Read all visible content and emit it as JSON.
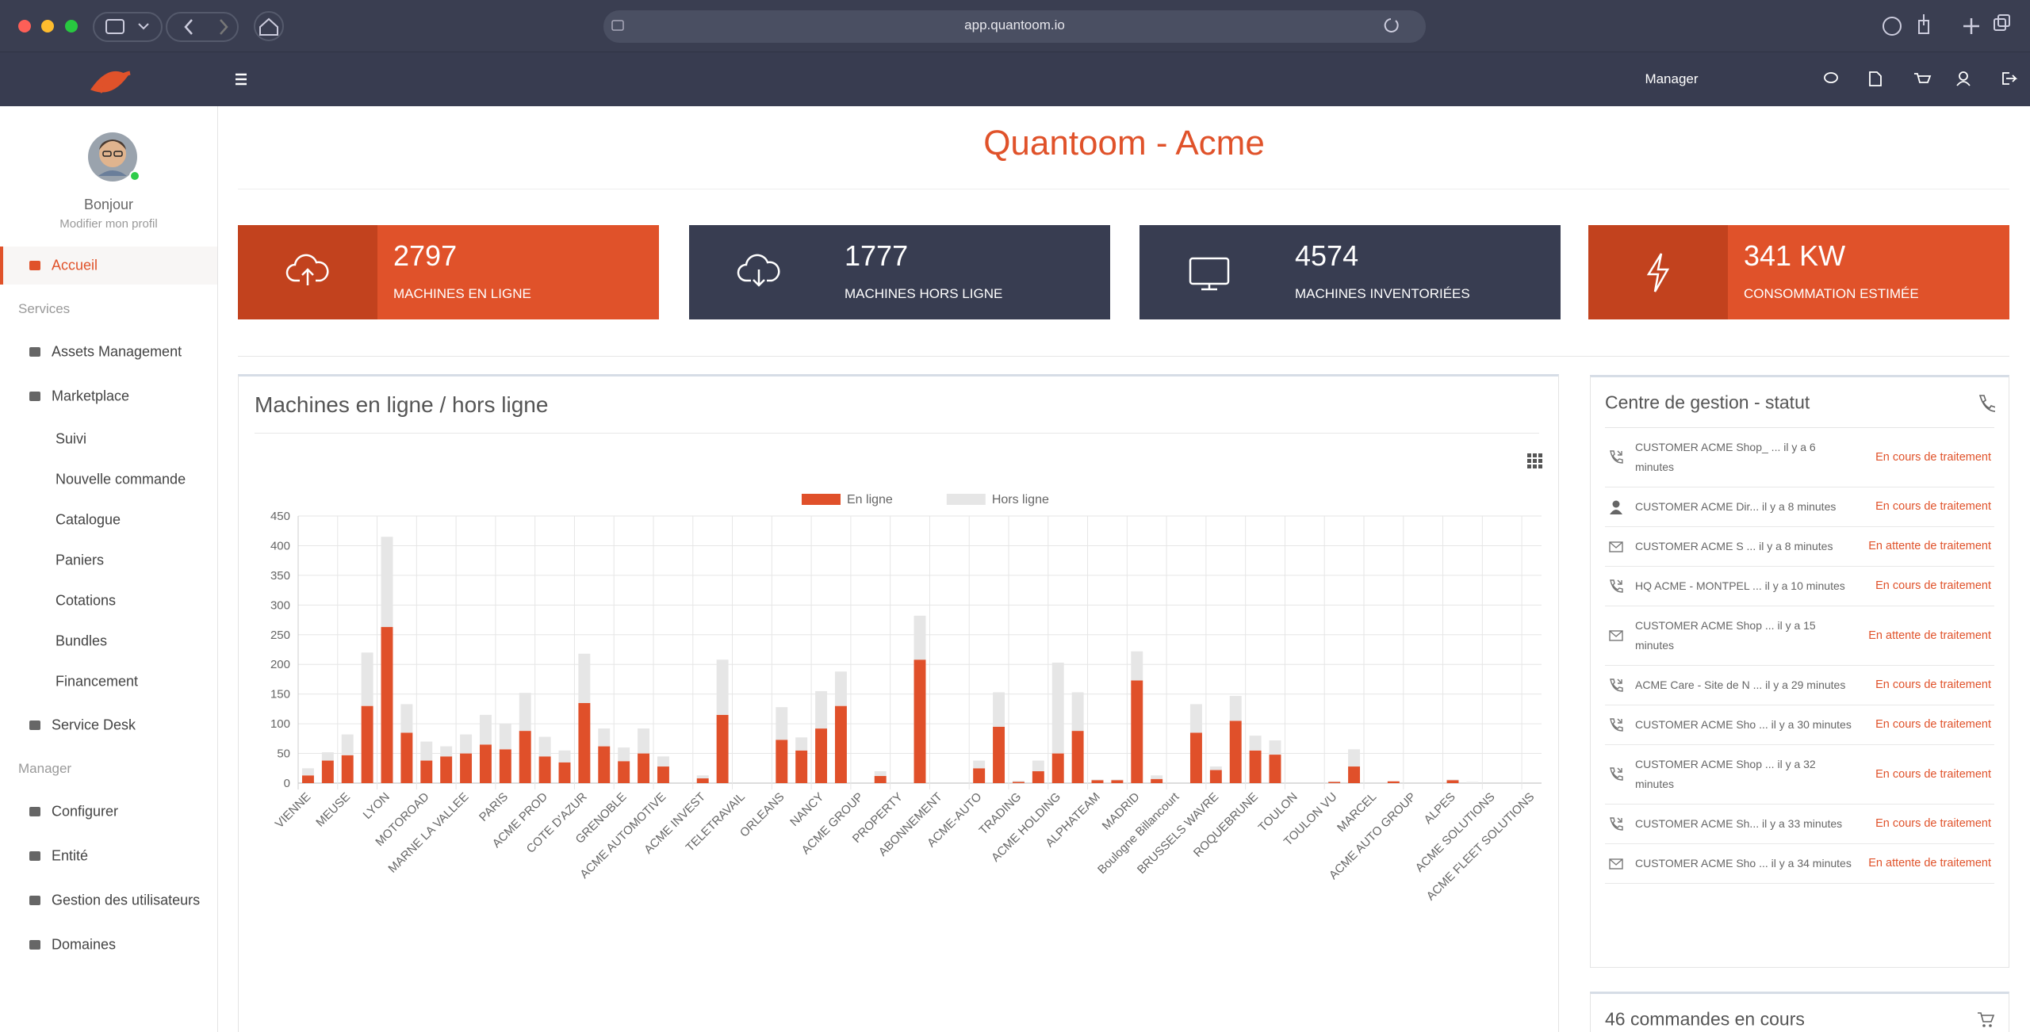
{
  "browser": {
    "url": "app.quantoom.io"
  },
  "header": {
    "role": "Manager"
  },
  "sidebar": {
    "greeting": "Bonjour",
    "profile_link": "Modifier mon profil",
    "home": "Accueil",
    "sections": [
      {
        "title": "Services",
        "items": [
          {
            "label": "Assets Management"
          },
          {
            "label": "Marketplace",
            "children": [
              "Suivi",
              "Nouvelle commande",
              "Catalogue",
              "Paniers",
              "Cotations",
              "Bundles",
              "Financement"
            ]
          },
          {
            "label": "Service Desk"
          }
        ]
      },
      {
        "title": "Manager",
        "items": [
          {
            "label": "Configurer"
          },
          {
            "label": "Entité"
          },
          {
            "label": "Gestion des utilisateurs"
          },
          {
            "label": "Domaines"
          }
        ]
      }
    ]
  },
  "page_title": "Quantoom - Acme",
  "stats": [
    {
      "value": "2797",
      "label": "MACHINES EN LIGNE",
      "color": "#e0522a",
      "icon_color": "#c2421e"
    },
    {
      "value": "1777",
      "label": "MACHINES HORS LIGNE",
      "color": "#383d51",
      "icon_color": "#383d51"
    },
    {
      "value": "4574",
      "label": "MACHINES INVENTORIÉES",
      "color": "#383d51",
      "icon_color": "#383d51"
    },
    {
      "value": "341 KW",
      "label": "CONSOMMATION ESTIMÉE",
      "color": "#e0522a",
      "icon_color": "#c2421e"
    }
  ],
  "chart_panel_title": "Machines en ligne / hors ligne",
  "chart_data": {
    "type": "stacked_bar",
    "categories": [
      "VIENNE",
      null,
      "MEUSE",
      null,
      "LYON",
      null,
      "MOTOROAD",
      null,
      "MARNE LA VALLEE",
      null,
      "PARIS",
      null,
      "ACME PROD",
      null,
      "COTE D'AZUR",
      null,
      "GRENOBLE",
      null,
      "ACME AUTOMOTIVE",
      null,
      "ACME INVEST",
      null,
      "TELETRAVAIL",
      null,
      "ORLEANS",
      null,
      "NANCY",
      null,
      "ACME GROUP",
      null,
      "PROPERTY",
      null,
      "ABONNEMENT",
      null,
      "ACME-AUTO",
      null,
      "TRADING",
      null,
      "ACME HOLDING",
      null,
      "ALPHATEAM",
      null,
      "MADRID",
      null,
      "Boulogne Billancourt",
      null,
      "BRUSSELS WAVRE",
      null,
      "ROQUEBRUNE",
      null,
      "TOULON",
      null,
      "TOULON VU",
      null,
      "MARCEL",
      null,
      "ACME AUTO GROUP",
      null,
      "ALPES",
      null,
      "ACME SOLUTIONS",
      null,
      "ACME FLEET SOLUTIONS"
    ],
    "series": [
      {
        "name": "En ligne",
        "color": "#e0502a",
        "values": [
          13,
          38,
          47,
          130,
          263,
          85,
          38,
          45,
          50,
          65,
          57,
          88,
          45,
          35,
          135,
          62,
          37,
          50,
          28,
          0,
          8,
          115,
          0,
          0,
          73,
          55,
          92,
          130,
          0,
          12,
          0,
          208,
          0,
          0,
          25,
          95,
          2,
          20,
          50,
          88,
          5,
          5,
          173,
          7,
          0,
          85,
          22,
          105,
          55,
          48,
          0,
          0,
          2,
          28,
          0,
          3,
          0,
          0,
          5,
          0,
          0,
          0,
          0
        ]
      },
      {
        "name": "Hors ligne",
        "color": "#e6e6e6",
        "values": [
          12,
          14,
          35,
          90,
          152,
          48,
          32,
          17,
          32,
          50,
          43,
          64,
          33,
          20,
          83,
          30,
          23,
          42,
          17,
          0,
          5,
          93,
          0,
          0,
          55,
          22,
          63,
          58,
          0,
          8,
          0,
          74,
          0,
          0,
          13,
          58,
          2,
          18,
          153,
          65,
          1,
          1,
          49,
          6,
          0,
          48,
          6,
          42,
          25,
          24,
          0,
          0,
          1,
          29,
          0,
          0,
          0,
          0,
          1,
          2,
          0,
          0,
          0
        ]
      }
    ],
    "ylim": [
      0,
      450
    ],
    "yticks": [
      0,
      50,
      100,
      150,
      200,
      250,
      300,
      350,
      400,
      450
    ],
    "grid": true,
    "legend": "top"
  },
  "status_panel": {
    "title": "Centre de gestion - statut",
    "rows": [
      {
        "icon": "phone",
        "text": "CUSTOMER ACME Shop_ ... il y a 6 minutes",
        "status": "En cours de traitement"
      },
      {
        "icon": "user",
        "text": "CUSTOMER ACME Dir... il y a 8 minutes",
        "status": "En cours de traitement"
      },
      {
        "icon": "mail",
        "text": "CUSTOMER ACME S ... il y a 8 minutes",
        "status": "En attente de traitement"
      },
      {
        "icon": "phone",
        "text": "HQ ACME - MONTPEL ... il y a 10 minutes",
        "status": "En cours de traitement"
      },
      {
        "icon": "mail",
        "text": "CUSTOMER ACME Shop ... il y a 15 minutes",
        "status": "En attente de traitement"
      },
      {
        "icon": "phone",
        "text": "ACME Care - Site de N ... il y a 29 minutes",
        "status": "En cours de traitement"
      },
      {
        "icon": "phone",
        "text": "CUSTOMER ACME Sho ... il y a 30 minutes",
        "status": "En cours de traitement"
      },
      {
        "icon": "phone",
        "text": "CUSTOMER ACME Shop ... il y a 32 minutes",
        "status": "En cours de traitement"
      },
      {
        "icon": "phone",
        "text": "CUSTOMER ACME Sh... il y a 33 minutes",
        "status": "En cours de traitement"
      },
      {
        "icon": "mail",
        "text": "CUSTOMER ACME Sho ... il y a 34 minutes",
        "status": "En attente de traitement"
      }
    ]
  },
  "orders_panel": {
    "title": "46 commandes en cours"
  }
}
